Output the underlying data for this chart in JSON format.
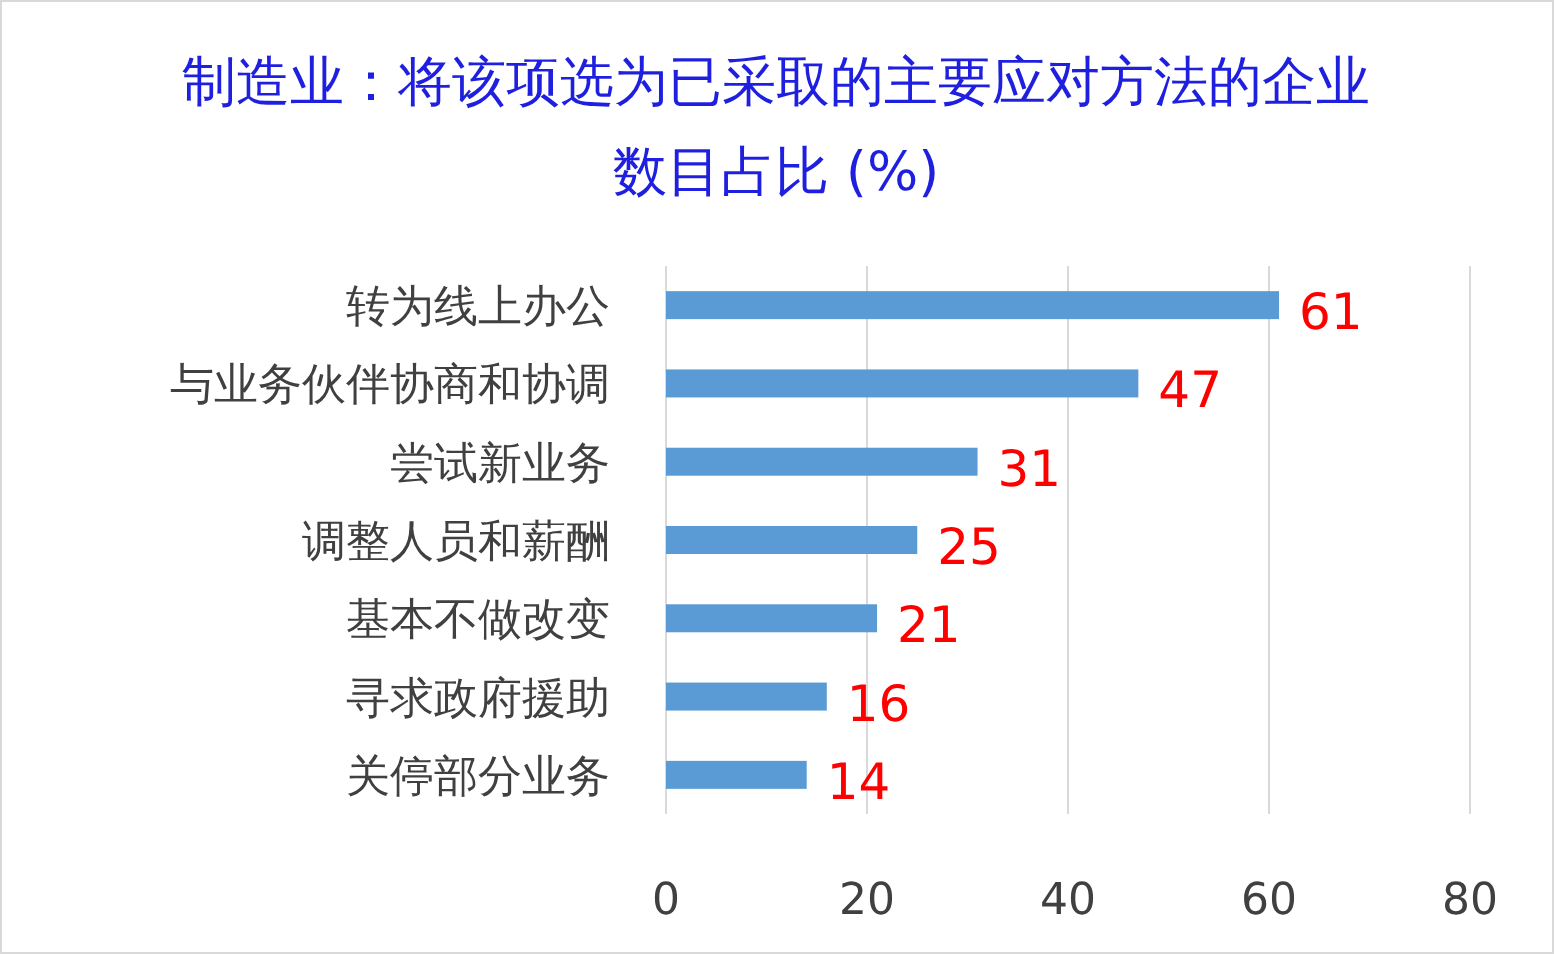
{
  "chart_data": {
    "type": "bar",
    "orientation": "horizontal",
    "title": "制造业：将该项选为已采取的主要应对方法的企业数目占比 (%)",
    "categories": [
      "转为线上办公",
      "与业务伙伴协商和协调",
      "尝试新业务",
      "调整人员和薪酬",
      "基本不做改变",
      "寻求政府援助",
      "关停部分业务"
    ],
    "values": [
      61,
      47,
      31,
      25,
      21,
      16,
      14
    ],
    "color": "#5b9bd5",
    "xlim": [
      0,
      80
    ],
    "xticks": [
      0,
      20,
      40,
      60,
      80
    ],
    "grid": "x",
    "data_labels": true
  }
}
